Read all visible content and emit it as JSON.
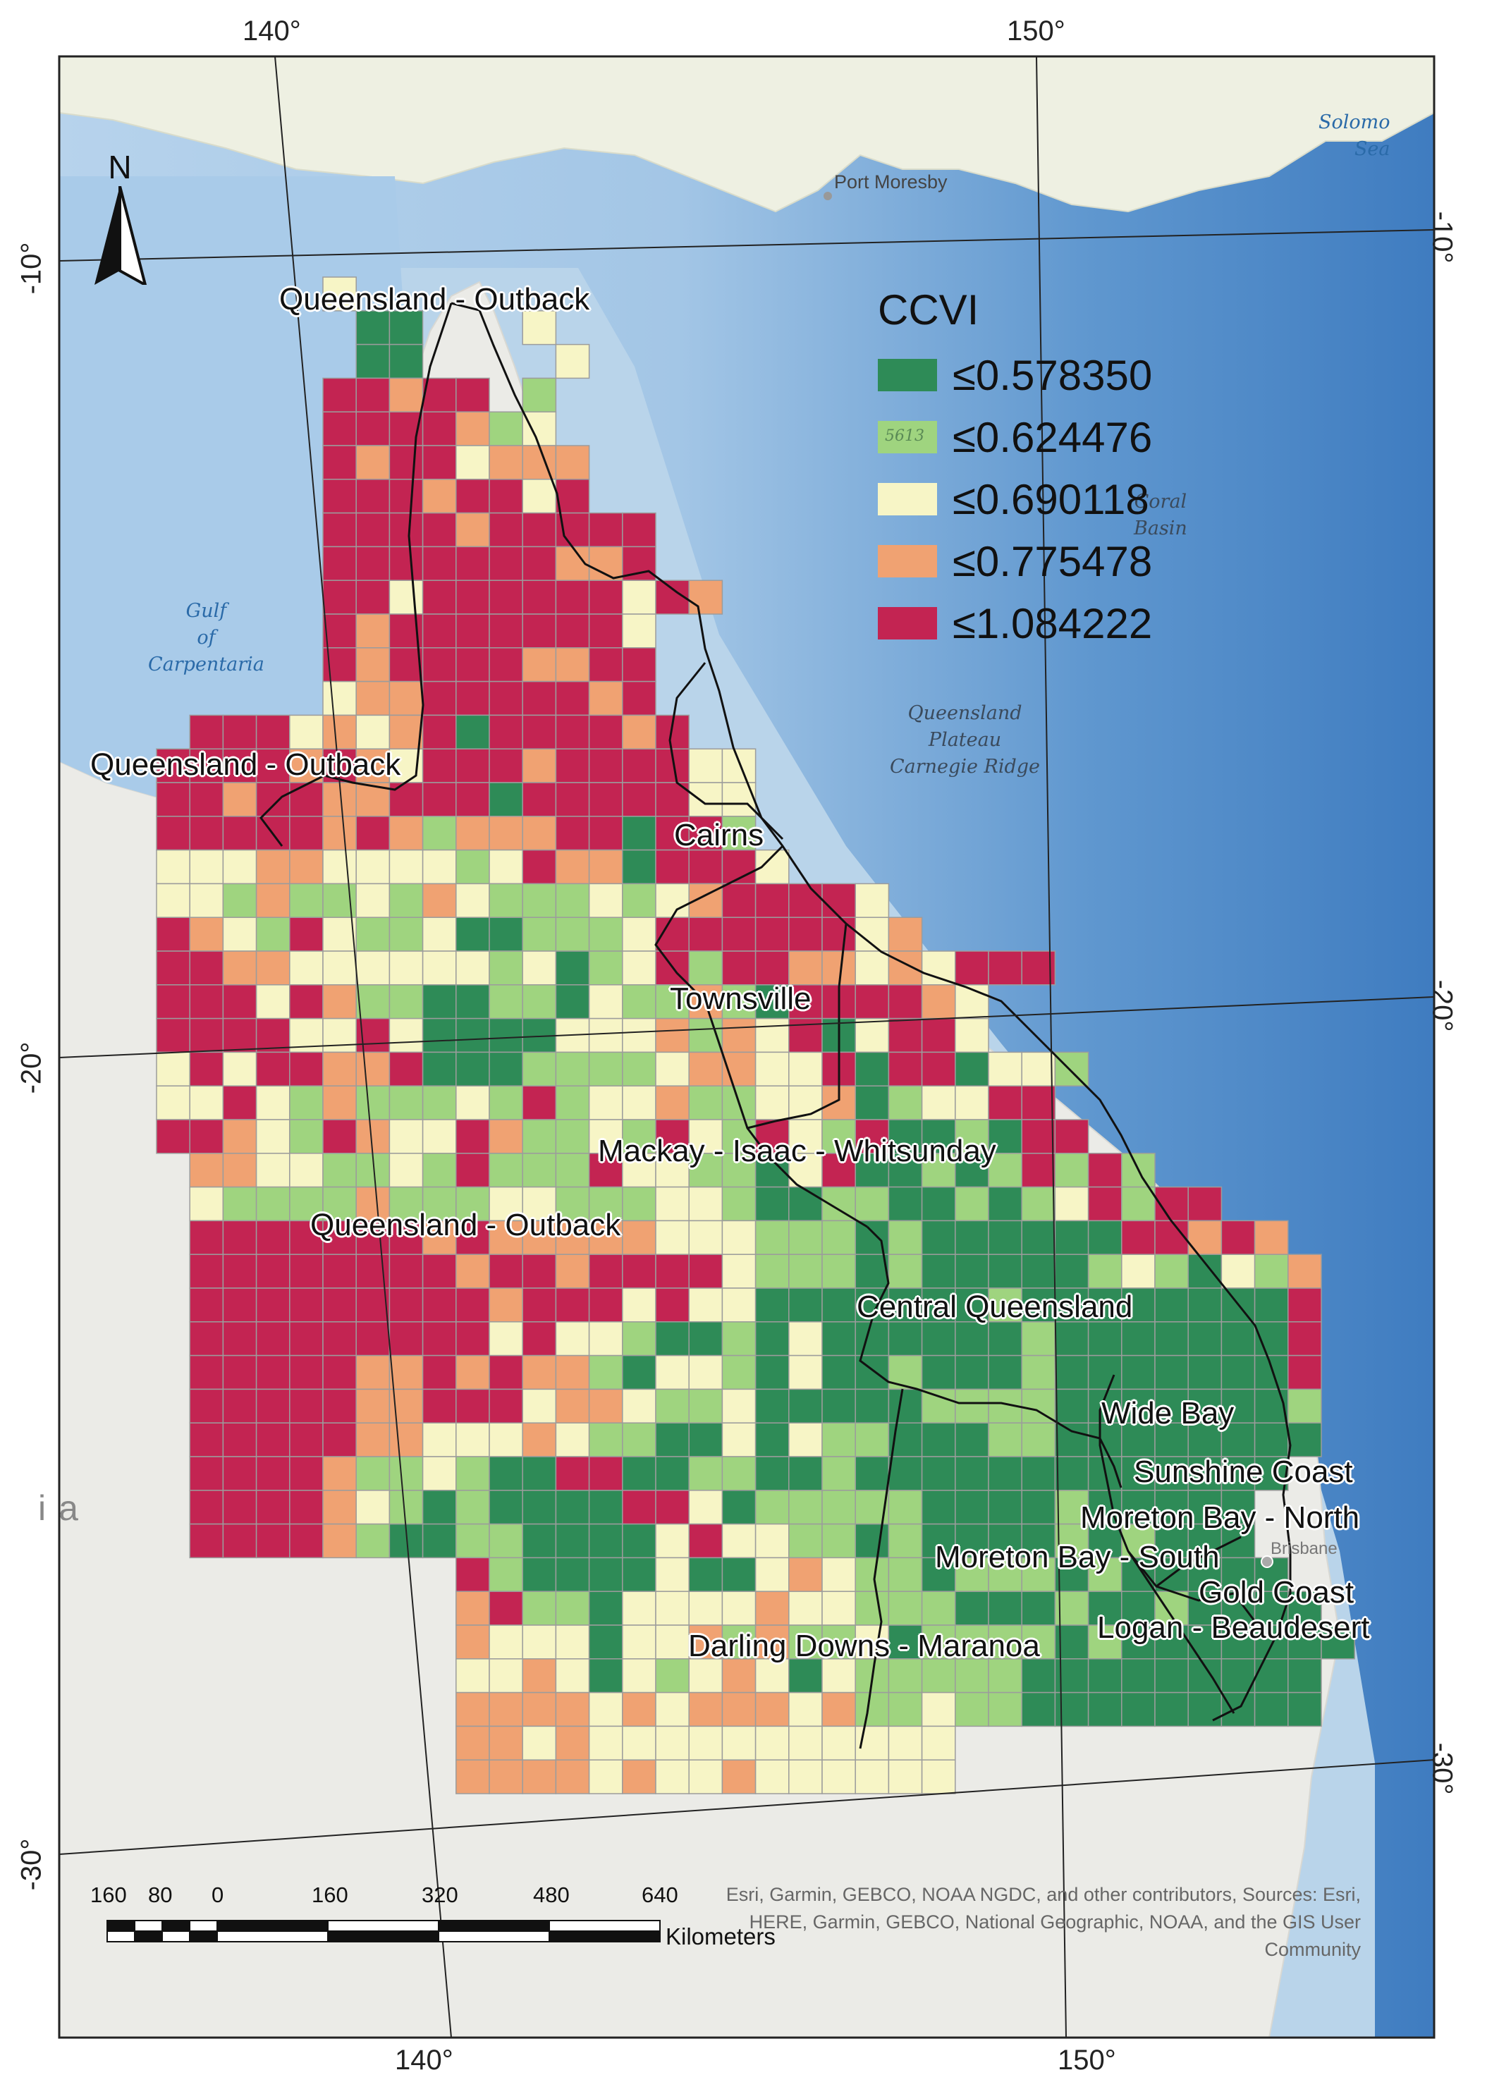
{
  "map": {
    "index_name": "CCVI",
    "legend": [
      {
        "label": "≤0.578350",
        "color": "#2e8b57",
        "code": 1
      },
      {
        "label": "≤0.624476",
        "color": "#9fd47f",
        "code": 2
      },
      {
        "label": "≤0.690118",
        "color": "#f7f5c6",
        "code": 3
      },
      {
        "label": "≤0.775478",
        "color": "#f0a272",
        "code": 4
      },
      {
        "label": "≤1.084222",
        "color": "#c32452",
        "code": 5
      }
    ],
    "legend_swatch_text": "5613",
    "north_label": "N",
    "graticule": {
      "top": [
        "140°",
        "150°"
      ],
      "bottom": [
        "140°",
        "150°"
      ],
      "left": [
        "-10°",
        "-20°",
        "-30°"
      ],
      "right": [
        "-10°",
        "-20°",
        "-30°"
      ]
    },
    "region_labels": [
      "Queensland - Outback",
      "Queensland - Outback",
      "Cairns",
      "Townsville",
      "Mackay - Isaac - Whitsunday",
      "Queensland - Outback",
      "Central Queensland",
      "Wide Bay",
      "Sunshine Coast",
      "Moreton Bay - North",
      "Moreton Bay - South",
      "Gold Coast",
      "Logan - Beaudesert",
      "Darling Downs - Maranoa"
    ],
    "place_labels": [
      "Port Moresby",
      "Brisbane"
    ],
    "sea_labels": [
      {
        "lines": [
          "Gulf",
          "of",
          "Carpentaria"
        ]
      },
      {
        "lines": [
          "Solomo",
          "Sea"
        ]
      }
    ],
    "ocean_labels": [
      {
        "lines": [
          "Coral",
          "Basin"
        ]
      },
      {
        "lines": [
          "Queensland",
          "Plateau",
          "Carnegie Ridge"
        ]
      }
    ],
    "partial_country_label": "ia",
    "scale_bar": {
      "ticks": [
        "160",
        "80",
        "0",
        "160",
        "320",
        "480",
        "640"
      ],
      "unit": "Kilometers"
    },
    "attribution": "Esri, Garmin, GEBCO, NOAA NGDC, and other contributors, Sources: Esri, HERE, Garmin, GEBCO, National Geographic, NOAA, and the GIS User Community",
    "grid_rows": [
      "     3                              ",
      "      11   3                        ",
      "      11    3                       ",
      "     55455 2                        ",
      "     5555423                        ",
      "     54553444                       ",
      "     55545535                       ",
      "     5555455555                     ",
      "     5555555445                     ",
      "     553555555354                   ",
      "     5455555553                     ",
      "     5455554455                     ",
      "     3445555545                     ",
      " 555343451555545                    ",
      "555545435554555533                  ",
      "554554455515555533                  ",
      "555554542444551552                  ",
      "3334433332354415553                 ",
      "3324223243222323455553              ",
      "54325322311222355555534             ",
      "554433333323123525544343555         ",
      "5553542211221322421555543           ",
      "5555335311113334243513553           ",
      "3535544511122223443351551332        ",
      "335324222325233422334123355         ",
      "5543254335422325325325112155        ",
      " 44332232522253322135112125252      ",
      " 3222242223322233211221121235255    ",
      " 555555545444443332221211111155454  ",
      " 5555555545545555322212111112321324 ",
      " 5555555554555353311111112111111115 ",
      " 5555555553533211213111111211111115 ",
      " 5555544545442133213112111211111115 ",
      " 5555544555344322311111222211111112 ",
      " 5555544333432211313221112211111111 ",
      " 555542232115511221121111111111111  ",
      " 55554321211115531222221111211111   ",
      " 55554211221111353322121111212111   ",
      "         5211113113432212221211111   ",
      "         45221333343322211121121111  ",
      "         433313342422312222121111111 ",
      "         33431323431322222111111111  ",
      "         44443434443422322111111111  ",
      "         443433333333333              ",
      "         444434334333333              "
    ]
  }
}
